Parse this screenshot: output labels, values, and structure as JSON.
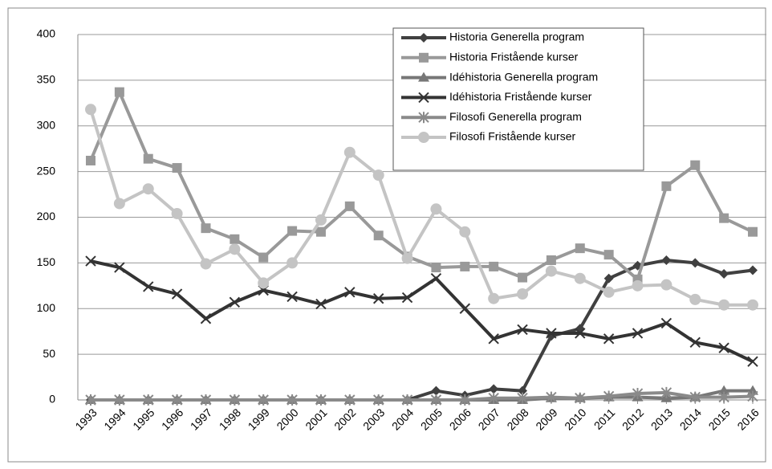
{
  "chart_data": {
    "type": "line",
    "categories": [
      "1993",
      "1994",
      "1995",
      "1996",
      "1997",
      "1998",
      "1999",
      "2000",
      "2001",
      "2002",
      "2003",
      "2004",
      "2005",
      "2006",
      "2007",
      "2008",
      "2009",
      "2010",
      "2011",
      "2012",
      "2013",
      "2014",
      "2015",
      "2016"
    ],
    "series": [
      {
        "name": "Historia Generella program",
        "color": "#404040",
        "marker": "diamond",
        "values": [
          0,
          0,
          0,
          0,
          0,
          0,
          0,
          0,
          0,
          0,
          0,
          0,
          10,
          5,
          12,
          10,
          70,
          78,
          133,
          147,
          153,
          150,
          138,
          142
        ]
      },
      {
        "name": "Historia Fristående kurser",
        "color": "#999999",
        "marker": "square",
        "values": [
          262,
          337,
          264,
          254,
          188,
          176,
          156,
          185,
          184,
          212,
          180,
          157,
          145,
          146,
          146,
          134,
          153,
          166,
          159,
          132,
          234,
          257,
          199,
          184
        ]
      },
      {
        "name": "Idéhistoria Generella program",
        "color": "#777777",
        "marker": "triangle",
        "values": [
          0,
          0,
          0,
          0,
          0,
          0,
          0,
          0,
          0,
          0,
          0,
          0,
          0,
          0,
          0,
          0,
          2,
          2,
          3,
          3,
          2,
          3,
          10,
          10
        ]
      },
      {
        "name": "Idéhistoria Fristående kurser",
        "color": "#333333",
        "marker": "x",
        "values": [
          152,
          145,
          124,
          116,
          89,
          107,
          120,
          113,
          105,
          118,
          111,
          112,
          133,
          100,
          67,
          77,
          73,
          73,
          67,
          73,
          84,
          63,
          57,
          42
        ]
      },
      {
        "name": "Filosofi Generella program",
        "color": "#8a8a8a",
        "marker": "star",
        "values": [
          0,
          0,
          0,
          0,
          0,
          0,
          0,
          0,
          0,
          0,
          0,
          0,
          0,
          0,
          2,
          2,
          3,
          2,
          4,
          7,
          8,
          3,
          3,
          4
        ]
      },
      {
        "name": "Filosofi Fristående kurser",
        "color": "#c4c4c4",
        "marker": "circle",
        "values": [
          318,
          215,
          231,
          204,
          149,
          165,
          128,
          150,
          197,
          271,
          246,
          155,
          209,
          184,
          111,
          116,
          141,
          133,
          118,
          125,
          126,
          110,
          104,
          104
        ]
      }
    ],
    "ylim": [
      0,
      400
    ],
    "yticks": [
      0,
      50,
      100,
      150,
      200,
      250,
      300,
      350,
      400
    ],
    "grid": true,
    "legend": "top-right"
  }
}
